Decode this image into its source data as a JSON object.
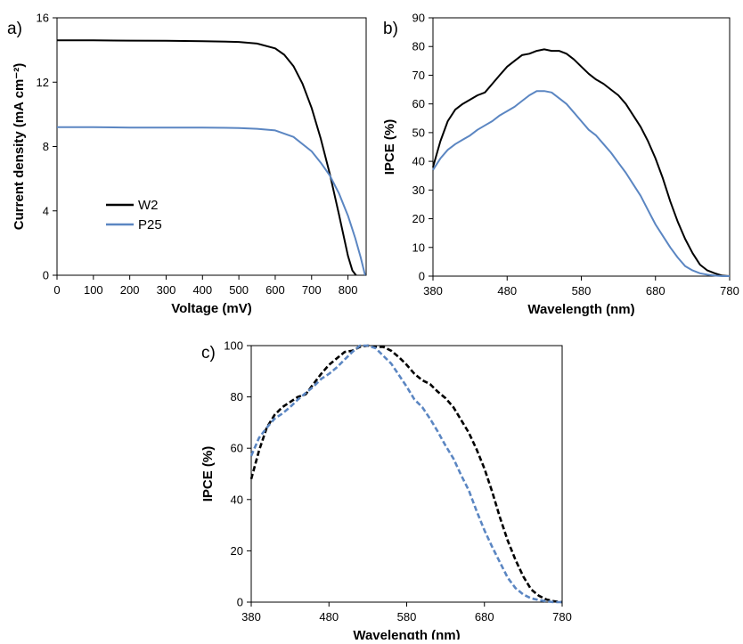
{
  "colors": {
    "black": "#000000",
    "blue": "#5b86c2"
  },
  "chart_data": [
    {
      "panel_label": "a)",
      "type": "line",
      "xlabel": "Voltage (mV)",
      "ylabel": "Current density (mA cm⁻²)",
      "xlim": [
        0,
        850
      ],
      "ylim": [
        0,
        16
      ],
      "xticks": [
        "0",
        "100",
        "200",
        "300",
        "400",
        "500",
        "600",
        "700",
        "800"
      ],
      "yticks": [
        "0",
        "4",
        "8",
        "12",
        "16"
      ],
      "legend_position": "center-left",
      "series": [
        {
          "name": "W2",
          "color": "#000000",
          "dashed": false,
          "x": [
            0,
            100,
            200,
            300,
            400,
            500,
            550,
            600,
            625,
            650,
            675,
            700,
            725,
            750,
            775,
            800,
            812,
            822
          ],
          "y": [
            14.6,
            14.6,
            14.58,
            14.57,
            14.55,
            14.5,
            14.4,
            14.1,
            13.7,
            13.0,
            11.9,
            10.4,
            8.5,
            6.3,
            3.8,
            1.2,
            0.3,
            0
          ]
        },
        {
          "name": "P25",
          "color": "#5b86c2",
          "dashed": false,
          "x": [
            0,
            100,
            200,
            300,
            400,
            500,
            550,
            600,
            650,
            700,
            725,
            750,
            775,
            800,
            820,
            835,
            847
          ],
          "y": [
            9.2,
            9.2,
            9.18,
            9.18,
            9.18,
            9.15,
            9.1,
            9.0,
            8.6,
            7.7,
            7.0,
            6.2,
            5.1,
            3.7,
            2.3,
            1.1,
            0
          ]
        }
      ]
    },
    {
      "panel_label": "b)",
      "type": "line",
      "xlabel": "Wavelength (nm)",
      "ylabel": "IPCE (%)",
      "xlim": [
        380,
        780
      ],
      "ylim": [
        0,
        90
      ],
      "xticks": [
        "380",
        "480",
        "580",
        "680",
        "780"
      ],
      "yticks": [
        "0",
        "10",
        "20",
        "30",
        "40",
        "50",
        "60",
        "70",
        "80",
        "90"
      ],
      "series": [
        {
          "name": "",
          "color": "#000000",
          "dashed": false,
          "x": [
            380,
            390,
            400,
            410,
            420,
            440,
            450,
            460,
            470,
            480,
            490,
            500,
            510,
            520,
            530,
            540,
            550,
            560,
            570,
            580,
            590,
            600,
            610,
            620,
            630,
            640,
            650,
            660,
            670,
            680,
            690,
            700,
            710,
            720,
            730,
            740,
            750,
            760,
            770,
            780
          ],
          "y": [
            38,
            47,
            54,
            58,
            60,
            63,
            64,
            67,
            70,
            73,
            75,
            77,
            77.5,
            78.5,
            79,
            78.5,
            78.5,
            77.5,
            75.5,
            73,
            70.5,
            68.5,
            67,
            65,
            63,
            60,
            56,
            52,
            47,
            41,
            34,
            26,
            19,
            13,
            8,
            4,
            2,
            1,
            0.2,
            0
          ]
        },
        {
          "name": "",
          "color": "#5b86c2",
          "dashed": false,
          "x": [
            380,
            390,
            400,
            410,
            420,
            430,
            440,
            450,
            460,
            470,
            480,
            490,
            500,
            510,
            520,
            530,
            540,
            550,
            560,
            570,
            580,
            590,
            600,
            610,
            620,
            630,
            640,
            650,
            660,
            670,
            680,
            690,
            700,
            710,
            720,
            730,
            740,
            750,
            760,
            770,
            780
          ],
          "y": [
            37,
            41,
            44,
            46,
            47.5,
            49,
            51,
            52.5,
            54,
            56,
            57.5,
            59,
            61,
            63,
            64.5,
            64.5,
            64,
            62,
            60,
            57,
            54,
            51,
            49,
            46,
            43,
            39.5,
            36,
            32,
            28,
            23,
            18,
            14,
            10,
            6.5,
            3.5,
            2,
            1,
            0.5,
            0.2,
            0,
            0
          ]
        }
      ]
    },
    {
      "panel_label": "c)",
      "type": "line",
      "xlabel": "Wavelength (nm)",
      "ylabel": "IPCE (%)",
      "xlim": [
        380,
        780
      ],
      "ylim": [
        0,
        100
      ],
      "xticks": [
        "380",
        "480",
        "580",
        "680",
        "780"
      ],
      "yticks": [
        "0",
        "20",
        "40",
        "60",
        "80",
        "100"
      ],
      "series": [
        {
          "name": "",
          "color": "#000000",
          "dashed": true,
          "x": [
            380,
            390,
            400,
            410,
            420,
            440,
            450,
            460,
            470,
            480,
            490,
            500,
            510,
            520,
            530,
            540,
            550,
            560,
            570,
            580,
            590,
            600,
            610,
            620,
            630,
            640,
            650,
            660,
            670,
            680,
            690,
            700,
            710,
            720,
            730,
            740,
            750,
            760,
            770,
            780
          ],
          "y": [
            48,
            59,
            68,
            73,
            76,
            80,
            81,
            85,
            89,
            92.5,
            95,
            97.5,
            98,
            99.5,
            100,
            99.5,
            99.5,
            98,
            95.5,
            92.5,
            89,
            86.5,
            85,
            82,
            79.5,
            76,
            71,
            66,
            59.5,
            52,
            43,
            33,
            24,
            16.5,
            10,
            5,
            2.5,
            1,
            0.3,
            0
          ]
        },
        {
          "name": "",
          "color": "#5b86c2",
          "dashed": true,
          "x": [
            380,
            390,
            400,
            410,
            420,
            430,
            440,
            450,
            460,
            470,
            480,
            490,
            500,
            510,
            520,
            530,
            540,
            550,
            560,
            570,
            580,
            590,
            600,
            610,
            620,
            630,
            640,
            650,
            660,
            670,
            680,
            690,
            700,
            710,
            720,
            730,
            740,
            750,
            760,
            770,
            780
          ],
          "y": [
            57,
            64,
            68,
            71.5,
            73.5,
            76,
            79,
            81.5,
            84,
            87,
            89,
            91.5,
            94.5,
            97.5,
            100,
            100,
            99,
            96,
            93,
            88.5,
            84,
            79,
            76,
            71.5,
            66.5,
            61,
            56,
            49.5,
            43.5,
            35.5,
            28,
            21.5,
            15.5,
            9.5,
            5.5,
            3,
            1.5,
            0.8,
            0.3,
            0,
            0
          ]
        }
      ]
    }
  ]
}
